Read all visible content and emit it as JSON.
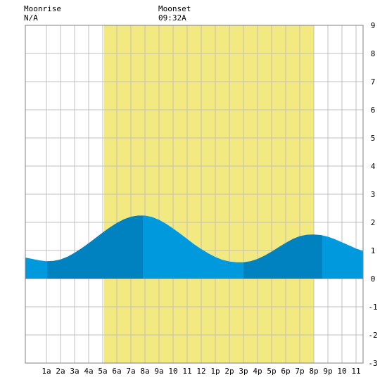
{
  "header": {
    "moonrise_label": "Moonrise",
    "moonrise_value": "N/A",
    "moonset_label": "Moonset",
    "moonset_value": "09:32A"
  },
  "colors": {
    "daylight": "#f2e980",
    "tide_light": "#0099dd",
    "tide_dark": "#0082c0",
    "grid": "#c0c0c0",
    "border": "#808080"
  },
  "chart_data": {
    "type": "area",
    "title": "",
    "xlabel": "",
    "ylabel": "",
    "xlim": [
      -0.5,
      23.5
    ],
    "ylim": [
      -3,
      9
    ],
    "grid": true,
    "x_ticks": [
      {
        "x": 1,
        "label": "1a"
      },
      {
        "x": 2,
        "label": "2a"
      },
      {
        "x": 3,
        "label": "3a"
      },
      {
        "x": 4,
        "label": "4a"
      },
      {
        "x": 5,
        "label": "5a"
      },
      {
        "x": 6,
        "label": "6a"
      },
      {
        "x": 7,
        "label": "7a"
      },
      {
        "x": 8,
        "label": "8a"
      },
      {
        "x": 9,
        "label": "9a"
      },
      {
        "x": 10,
        "label": "10"
      },
      {
        "x": 11,
        "label": "11"
      },
      {
        "x": 12,
        "label": "12"
      },
      {
        "x": 13,
        "label": "1p"
      },
      {
        "x": 14,
        "label": "2p"
      },
      {
        "x": 15,
        "label": "3p"
      },
      {
        "x": 16,
        "label": "4p"
      },
      {
        "x": 17,
        "label": "5p"
      },
      {
        "x": 18,
        "label": "6p"
      },
      {
        "x": 19,
        "label": "7p"
      },
      {
        "x": 20,
        "label": "8p"
      },
      {
        "x": 21,
        "label": "9p"
      },
      {
        "x": 22,
        "label": "10"
      },
      {
        "x": 23,
        "label": "11"
      }
    ],
    "y_ticks": [
      {
        "y": 9,
        "label": "9"
      },
      {
        "y": 8,
        "label": "8"
      },
      {
        "y": 7,
        "label": "7"
      },
      {
        "y": 6,
        "label": "6"
      },
      {
        "y": 5,
        "label": "5"
      },
      {
        "y": 4,
        "label": "4"
      },
      {
        "y": 3,
        "label": "3"
      },
      {
        "y": 2,
        "label": "2"
      },
      {
        "y": 1,
        "label": "1"
      },
      {
        "y": 0,
        "label": "0"
      },
      {
        "y": -1,
        "label": "-1"
      },
      {
        "y": -2,
        "label": "-2"
      },
      {
        "y": -3,
        "label": "-3"
      }
    ],
    "daylight": {
      "start": 5.1,
      "end": 20.0
    },
    "extrema": [
      {
        "x": 1.05,
        "y": 0.62,
        "kind": "low"
      },
      {
        "x": 7.85,
        "y": 2.25,
        "kind": "high"
      },
      {
        "x": 15.0,
        "y": 0.57,
        "kind": "low"
      },
      {
        "x": 20.6,
        "y": 1.57,
        "kind": "high"
      }
    ],
    "series": [
      {
        "x": [
          -0.5,
          0,
          0.5,
          1,
          1.5,
          2,
          2.5,
          3,
          3.5,
          4,
          4.5,
          5,
          5.5,
          6,
          6.5,
          7,
          7.5,
          8,
          8.5,
          9,
          9.5,
          10,
          10.5,
          11,
          11.5,
          12,
          12.5,
          13,
          13.5,
          14,
          14.5,
          15,
          15.5,
          16,
          16.5,
          17,
          17.5,
          18,
          18.5,
          19,
          19.5,
          20,
          20.5,
          21,
          21.5,
          22,
          22.5,
          23,
          23.5
        ],
        "values": [
          0.75,
          0.7,
          0.65,
          0.62,
          0.63,
          0.68,
          0.78,
          0.92,
          1.08,
          1.26,
          1.45,
          1.64,
          1.82,
          1.98,
          2.11,
          2.2,
          2.24,
          2.24,
          2.19,
          2.09,
          1.95,
          1.78,
          1.6,
          1.41,
          1.22,
          1.05,
          0.9,
          0.77,
          0.67,
          0.61,
          0.58,
          0.58,
          0.62,
          0.7,
          0.82,
          0.96,
          1.12,
          1.27,
          1.41,
          1.51,
          1.56,
          1.57,
          1.55,
          1.49,
          1.4,
          1.29,
          1.18,
          1.07,
          0.98
        ]
      }
    ]
  }
}
